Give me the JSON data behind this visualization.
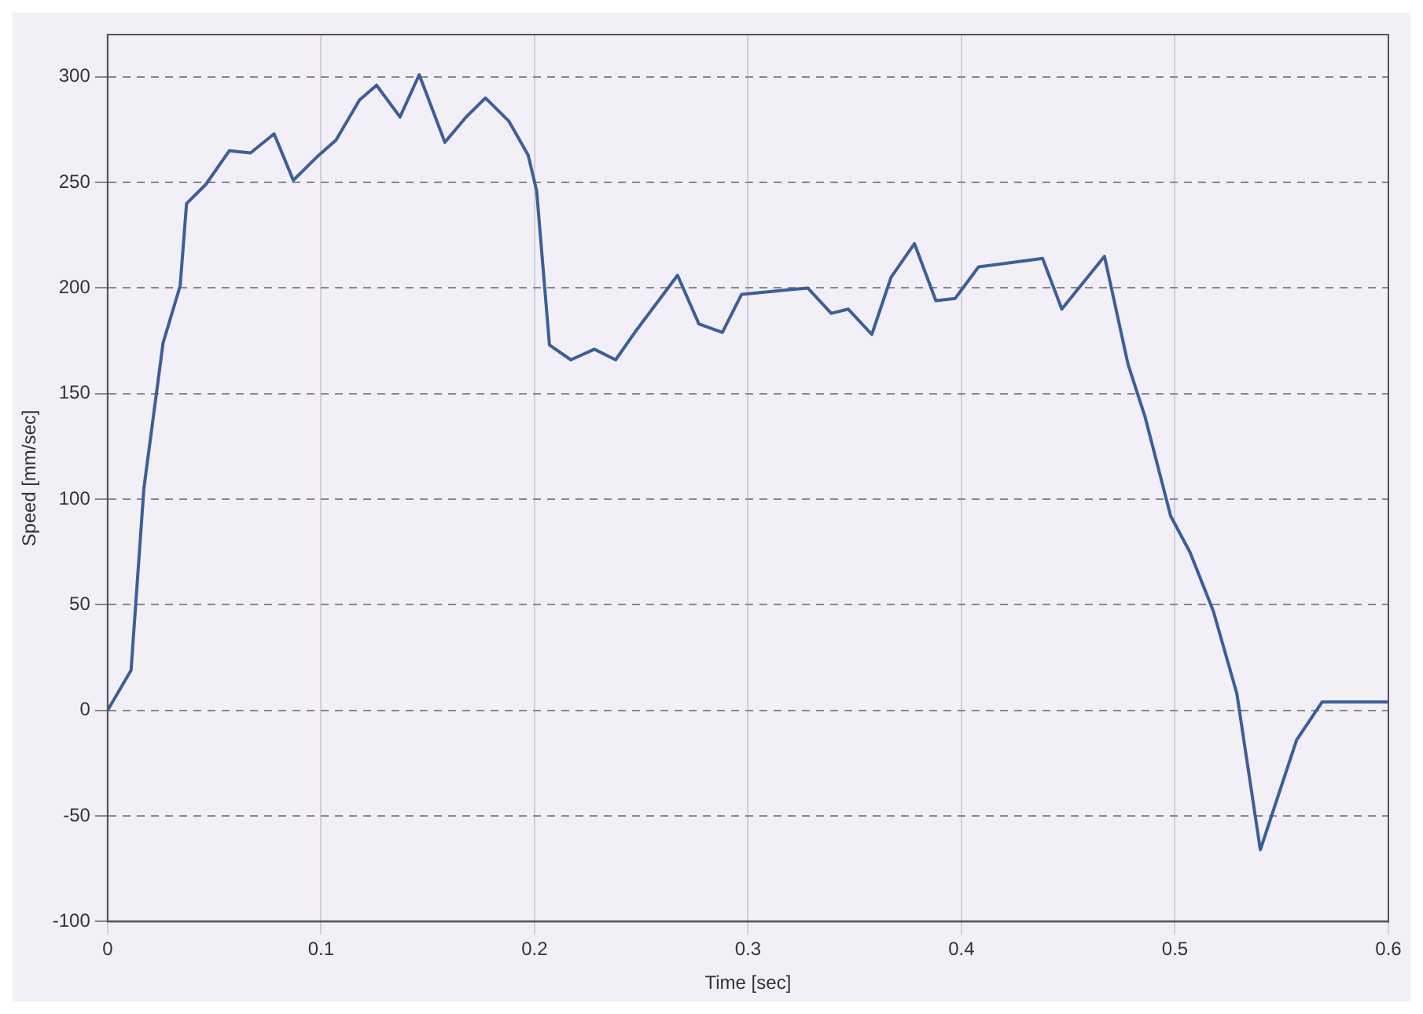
{
  "chart_data": {
    "type": "line",
    "xlabel": "Time [sec]",
    "ylabel": "Speed [mm/sec]",
    "xlim": [
      0,
      0.6
    ],
    "ylim": [
      -100,
      320
    ],
    "xticks": [
      0,
      0.1,
      0.2,
      0.3,
      0.4,
      0.5,
      0.6
    ],
    "yticks": [
      -100,
      -50,
      0,
      50,
      100,
      150,
      200,
      250,
      300
    ],
    "grid": true,
    "legend": false,
    "marker": "none",
    "line_style": "solid",
    "series": [
      {
        "color": "#3a5f9a",
        "x": [
          0,
          0.011,
          0.017,
          0.026,
          0.034,
          0.037,
          0.046,
          0.057,
          0.067,
          0.078,
          0.087,
          0.098,
          0.107,
          0.118,
          0.126,
          0.137,
          0.146,
          0.158,
          0.168,
          0.177,
          0.188,
          0.197,
          0.201,
          0.207,
          0.217,
          0.228,
          0.238,
          0.247,
          0.267,
          0.277,
          0.288,
          0.297,
          0.328,
          0.339,
          0.347,
          0.358,
          0.367,
          0.378,
          0.388,
          0.397,
          0.408,
          0.438,
          0.447,
          0.467,
          0.478,
          0.486,
          0.498,
          0.507,
          0.518,
          0.529,
          0.54,
          0.557,
          0.569,
          0.6
        ],
        "values": [
          0,
          19,
          105,
          174,
          201,
          240,
          249,
          265,
          264,
          273,
          251,
          262,
          270,
          289,
          296,
          281,
          301,
          269,
          281,
          290,
          279,
          263,
          246,
          173,
          166,
          171,
          166,
          179,
          206,
          183,
          179,
          197,
          200,
          188,
          190,
          178,
          205,
          221,
          194,
          195,
          210,
          214,
          190,
          215,
          164,
          139,
          92,
          75,
          47,
          8,
          -66,
          -14,
          4,
          4
        ]
      }
    ]
  }
}
